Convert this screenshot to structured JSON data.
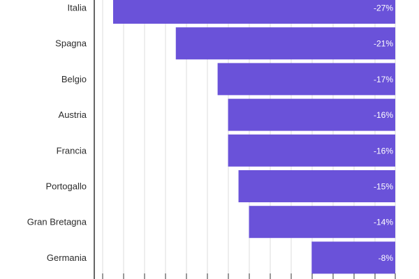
{
  "chart_data": {
    "type": "bar",
    "orientation": "horizontal",
    "title": "",
    "xlabel": "",
    "ylabel": "",
    "categories": [
      "Italia",
      "Spagna",
      "Belgio",
      "Austria",
      "Francia",
      "Portogallo",
      "Gran Bretagna",
      "Germania"
    ],
    "values": [
      -27,
      -21,
      -17,
      -16,
      -16,
      -15,
      -14,
      -8
    ],
    "value_labels": [
      "-27%",
      "-21%",
      "-17%",
      "-16%",
      "-16%",
      "-15%",
      "-14%",
      "-8%"
    ],
    "xlim": [
      -28,
      0
    ],
    "grid": true,
    "colors": {
      "bar": "#6a52d9",
      "value_text": "#ffffff",
      "grid": "#dedede",
      "axis": "#333333",
      "label": "#2b2b2b"
    }
  }
}
